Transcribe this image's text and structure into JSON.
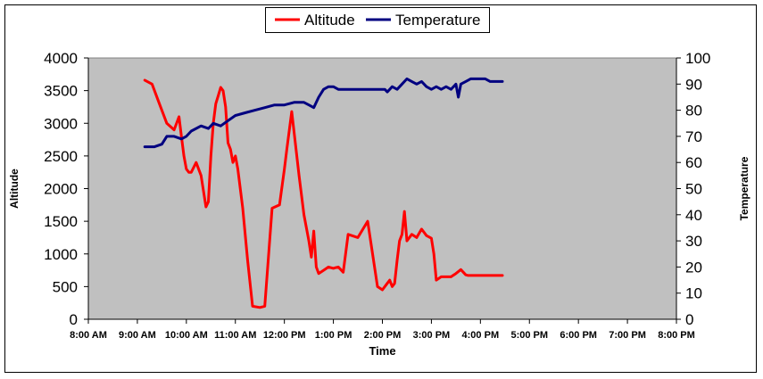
{
  "chart_data": {
    "type": "line",
    "title": "",
    "xlabel": "Time",
    "ylabel_left": "Altitude",
    "ylabel_right": "Temperature",
    "x_ticks": [
      "8:00 AM",
      "9:00 AM",
      "10:00 AM",
      "11:00 AM",
      "12:00 PM",
      "1:00 PM",
      "2:00 PM",
      "3:00 PM",
      "4:00 PM",
      "5:00 PM",
      "6:00 PM",
      "7:00 PM",
      "8:00 PM"
    ],
    "xlim_hours": [
      8,
      20
    ],
    "ylim_left": [
      0,
      4000
    ],
    "ylim_right": [
      0,
      100
    ],
    "y_ticks_left": [
      0,
      500,
      1000,
      1500,
      2000,
      2500,
      3000,
      3500,
      4000
    ],
    "y_ticks_right": [
      0,
      10,
      20,
      30,
      40,
      50,
      60,
      70,
      80,
      90,
      100
    ],
    "legend_position": "top-center",
    "grid": false,
    "series": [
      {
        "name": "Altitude",
        "axis": "left",
        "color": "#ff0000",
        "x": [
          9.15,
          9.3,
          9.45,
          9.6,
          9.75,
          9.85,
          9.9,
          9.95,
          10.0,
          10.05,
          10.1,
          10.2,
          10.3,
          10.4,
          10.45,
          10.5,
          10.55,
          10.6,
          10.65,
          10.7,
          10.75,
          10.8,
          10.85,
          10.9,
          10.95,
          11.0,
          11.05,
          11.15,
          11.25,
          11.35,
          11.5,
          11.6,
          11.75,
          11.9,
          12.0,
          12.05,
          12.15,
          12.3,
          12.4,
          12.5,
          12.55,
          12.6,
          12.65,
          12.7,
          12.8,
          12.9,
          13.0,
          13.05,
          13.1,
          13.2,
          13.3,
          13.5,
          13.7,
          13.9,
          14.0,
          14.1,
          14.15,
          14.2,
          14.25,
          14.3,
          14.35,
          14.4,
          14.45,
          14.5,
          14.6,
          14.7,
          14.8,
          14.9,
          15.0,
          15.05,
          15.1,
          15.2,
          15.3,
          15.4,
          15.5,
          15.6,
          15.7,
          15.75,
          15.8,
          16.0,
          16.2,
          16.3,
          16.4,
          16.45
        ],
        "y": [
          3660,
          3600,
          3300,
          3000,
          2900,
          3100,
          2800,
          2500,
          2300,
          2250,
          2250,
          2400,
          2200,
          1720,
          1800,
          2500,
          3000,
          3300,
          3420,
          3550,
          3500,
          3250,
          2700,
          2600,
          2400,
          2500,
          2300,
          1700,
          900,
          200,
          180,
          200,
          1700,
          1750,
          2300,
          2600,
          3180,
          2200,
          1600,
          1200,
          950,
          1350,
          800,
          700,
          750,
          800,
          780,
          790,
          800,
          720,
          1300,
          1250,
          1500,
          500,
          450,
          550,
          600,
          500,
          550,
          900,
          1200,
          1300,
          1650,
          1200,
          1300,
          1250,
          1380,
          1280,
          1240,
          1000,
          600,
          650,
          650,
          650,
          700,
          760,
          680,
          670,
          670,
          670,
          670,
          670,
          670,
          670
        ]
      },
      {
        "name": "Temperature",
        "axis": "right",
        "color": "#000080",
        "x": [
          9.15,
          9.35,
          9.5,
          9.6,
          9.75,
          9.9,
          10.0,
          10.1,
          10.3,
          10.45,
          10.55,
          10.7,
          10.85,
          11.0,
          11.2,
          11.4,
          11.6,
          11.8,
          12.0,
          12.2,
          12.4,
          12.5,
          12.6,
          12.7,
          12.8,
          12.9,
          13.0,
          13.1,
          13.3,
          13.5,
          13.7,
          13.9,
          14.05,
          14.1,
          14.2,
          14.3,
          14.4,
          14.5,
          14.6,
          14.7,
          14.8,
          14.9,
          15.0,
          15.1,
          15.2,
          15.3,
          15.4,
          15.5,
          15.55,
          15.6,
          15.7,
          15.8,
          15.9,
          16.0,
          16.1,
          16.2,
          16.3,
          16.45
        ],
        "y": [
          66,
          66,
          67,
          70,
          70,
          69,
          70,
          72,
          74,
          73,
          75,
          74,
          76,
          78,
          79,
          80,
          81,
          82,
          82,
          83,
          83,
          82,
          81,
          85,
          88,
          89,
          89,
          88,
          88,
          88,
          88,
          88,
          88,
          87,
          89,
          88,
          90,
          92,
          91,
          90,
          91,
          89,
          88,
          89,
          88,
          89,
          88,
          90,
          85,
          90,
          91,
          92,
          92,
          92,
          92,
          91,
          91,
          91
        ]
      }
    ]
  }
}
